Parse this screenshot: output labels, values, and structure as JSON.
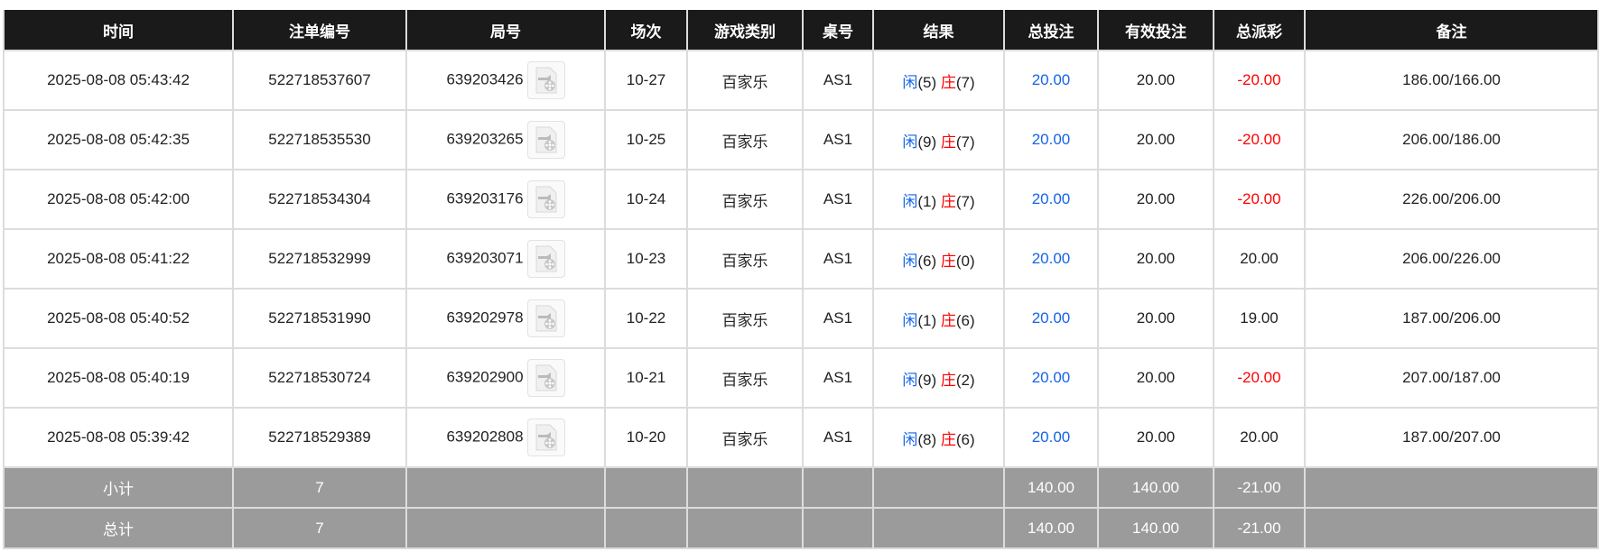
{
  "headers": [
    "时间",
    "注单编号",
    "局号",
    "场次",
    "游戏类别",
    "桌号",
    "结果",
    "总投注",
    "有效投注",
    "总派彩",
    "备注"
  ],
  "rows": [
    {
      "time": "2025-08-08 05:43:42",
      "bet_id": "522718537607",
      "round": "639203426",
      "session": "10-27",
      "game": "百家乐",
      "table": "AS1",
      "player_label": "闲",
      "player": "(5)",
      "banker_label": "庄",
      "banker": "(7)",
      "total_bet": "20.00",
      "valid_bet": "20.00",
      "payout": "-20.00",
      "payout_negative": true,
      "note": "186.00/166.00"
    },
    {
      "time": "2025-08-08 05:42:35",
      "bet_id": "522718535530",
      "round": "639203265",
      "session": "10-25",
      "game": "百家乐",
      "table": "AS1",
      "player_label": "闲",
      "player": "(9)",
      "banker_label": "庄",
      "banker": "(7)",
      "total_bet": "20.00",
      "valid_bet": "20.00",
      "payout": "-20.00",
      "payout_negative": true,
      "note": "206.00/186.00"
    },
    {
      "time": "2025-08-08 05:42:00",
      "bet_id": "522718534304",
      "round": "639203176",
      "session": "10-24",
      "game": "百家乐",
      "table": "AS1",
      "player_label": "闲",
      "player": "(1)",
      "banker_label": "庄",
      "banker": "(7)",
      "total_bet": "20.00",
      "valid_bet": "20.00",
      "payout": "-20.00",
      "payout_negative": true,
      "note": "226.00/206.00"
    },
    {
      "time": "2025-08-08 05:41:22",
      "bet_id": "522718532999",
      "round": "639203071",
      "session": "10-23",
      "game": "百家乐",
      "table": "AS1",
      "player_label": "闲",
      "player": "(6)",
      "banker_label": "庄",
      "banker": "(0)",
      "total_bet": "20.00",
      "valid_bet": "20.00",
      "payout": "20.00",
      "payout_negative": false,
      "note": "206.00/226.00"
    },
    {
      "time": "2025-08-08 05:40:52",
      "bet_id": "522718531990",
      "round": "639202978",
      "session": "10-22",
      "game": "百家乐",
      "table": "AS1",
      "player_label": "闲",
      "player": "(1)",
      "banker_label": "庄",
      "banker": "(6)",
      "total_bet": "20.00",
      "valid_bet": "20.00",
      "payout": "19.00",
      "payout_negative": false,
      "note": "187.00/206.00"
    },
    {
      "time": "2025-08-08 05:40:19",
      "bet_id": "522718530724",
      "round": "639202900",
      "session": "10-21",
      "game": "百家乐",
      "table": "AS1",
      "player_label": "闲",
      "player": "(9)",
      "banker_label": "庄",
      "banker": "(2)",
      "total_bet": "20.00",
      "valid_bet": "20.00",
      "payout": "-20.00",
      "payout_negative": true,
      "note": "207.00/187.00"
    },
    {
      "time": "2025-08-08 05:39:42",
      "bet_id": "522718529389",
      "round": "639202808",
      "session": "10-20",
      "game": "百家乐",
      "table": "AS1",
      "player_label": "闲",
      "player": "(8)",
      "banker_label": "庄",
      "banker": "(6)",
      "total_bet": "20.00",
      "valid_bet": "20.00",
      "payout": "20.00",
      "payout_negative": false,
      "note": "187.00/207.00"
    }
  ],
  "summary": [
    {
      "label": "小计",
      "count": "7",
      "total_bet": "140.00",
      "valid_bet": "140.00",
      "payout": "-21.00"
    },
    {
      "label": "总计",
      "count": "7",
      "total_bet": "140.00",
      "valid_bet": "140.00",
      "payout": "-21.00"
    }
  ],
  "colors": {
    "header_bg": "#1a1a1a",
    "summary_bg": "#9b9b9b",
    "blue": "#1565e6",
    "red": "#ff0000"
  },
  "icons": {
    "round_video": "video-file-icon"
  }
}
